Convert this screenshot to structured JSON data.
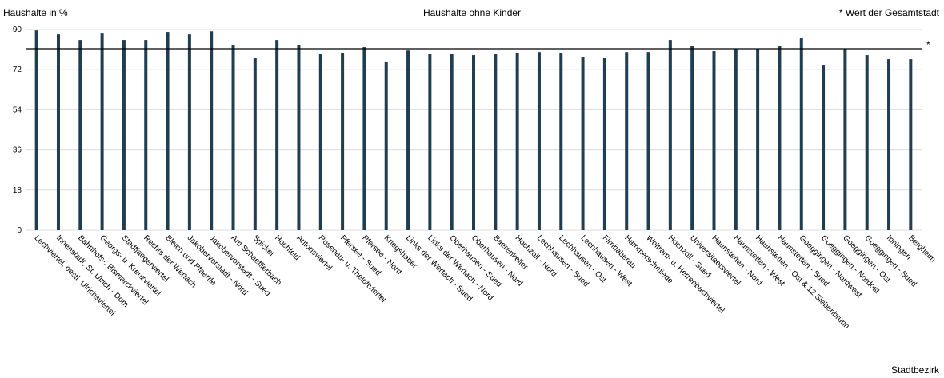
{
  "chart_data": {
    "type": "bar",
    "title": "Haushalte ohne Kinder",
    "y_label": "Haushalte in %",
    "x_label": "Stadtbezirk",
    "note": "* Wert der Gesamtstadt",
    "categories": [
      "Lechviertel, oestl. Ulrichsviertel",
      "Innenstadt, St. Ulrich - Dom",
      "Bahnhofs-, Bismarckviertel",
      "Georgs- u. Kreuzviertel",
      "Stadtjaegerviertel",
      "Rechts der Wertach",
      "Bleich und Pfaerrle",
      "Jakobervorstadt - Nord",
      "Jakobervorstadt - Sued",
      "Am Schaefflerbach",
      "Spickel",
      "Hochfeld",
      "Antonsviertel",
      "Rosenau- u. Thelottviertel",
      "Pfersee - Sued",
      "Pfersee - Nord",
      "Kriegshaber",
      "Links der Wertach - Sued",
      "Links der Wertach - Nord",
      "Oberhausen - Sued",
      "Oberhausen - Nord",
      "Baerenkeller",
      "Hochzoll - Nord",
      "Lechhausen - Sued",
      "Lechhausen - Ost",
      "Lechhausen - West",
      "Firnhaberau",
      "Hammerschmiede",
      "Wolfram- u. Herrenbachviertel",
      "Hochzoll - Sued",
      "Universitaetsviertel",
      "Haunstetten - Nord",
      "Haunstetten - West",
      "Haunstetten - Ost & 12 Siebenbrunn",
      "Haunstetten - Sued",
      "Goeggingen - Nordwest",
      "Goeggingen - Nordost",
      "Goeggingen - Ost",
      "Goeggingen - Sued",
      "Inningen",
      "Bergheim"
    ],
    "values": [
      89.6,
      87.8,
      85.3,
      88.5,
      85.3,
      85.3,
      88.9,
      87.8,
      89.2,
      83.2,
      77.1,
      85.3,
      83.2,
      78.9,
      79.6,
      82.1,
      75.6,
      80.6,
      79.2,
      78.9,
      78.5,
      78.9,
      79.6,
      79.9,
      79.6,
      77.8,
      77.1,
      79.9,
      79.9,
      85.3,
      82.8,
      80.3,
      81.4,
      81.4,
      82.8,
      86.4,
      74.2,
      81.4,
      78.5,
      76.7,
      76.7
    ],
    "color": "#203e52",
    "ylim": [
      0,
      90
    ],
    "yticks": [
      0,
      18,
      36,
      54,
      72,
      90
    ],
    "grid": true,
    "reference": {
      "value": 81.4,
      "label": "*"
    }
  }
}
